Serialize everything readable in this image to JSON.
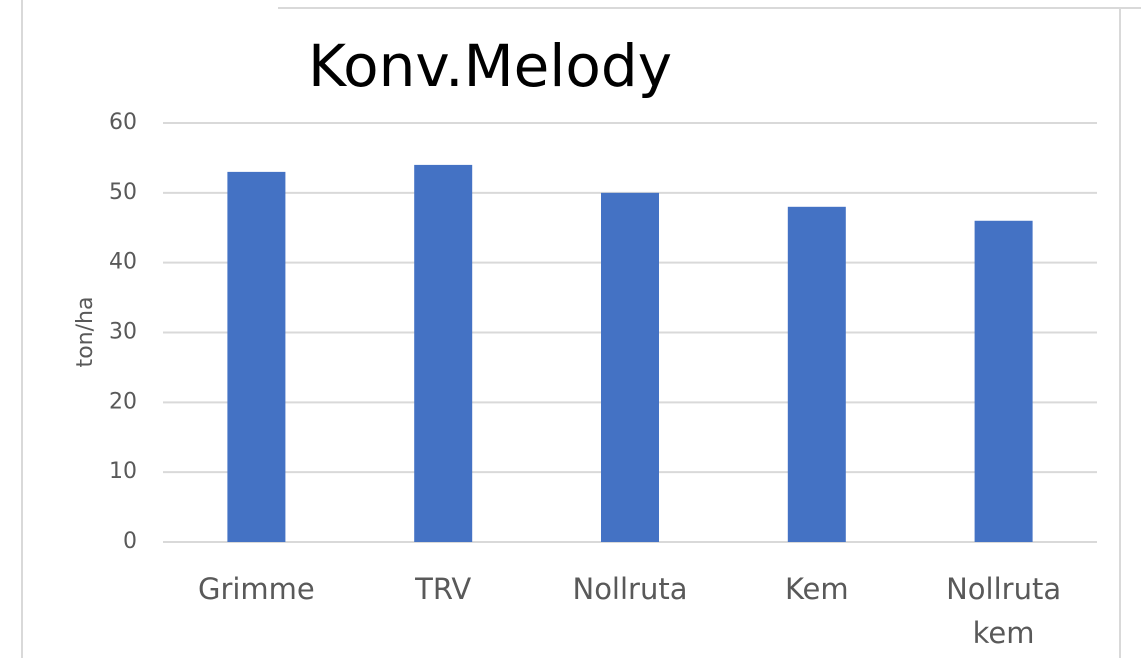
{
  "chart_data": {
    "type": "bar",
    "title": "Konv.Melody",
    "y_label": "ton/ha",
    "categories": [
      "Grimme",
      "TRV",
      "Nollruta",
      "Kem",
      "Nollruta kem"
    ],
    "values": [
      53,
      54,
      50,
      48,
      46
    ],
    "color": "#4472c4",
    "ylim": [
      0,
      60
    ],
    "yticks": [
      0,
      10,
      20,
      30,
      40,
      50,
      60
    ],
    "grid": true
  }
}
